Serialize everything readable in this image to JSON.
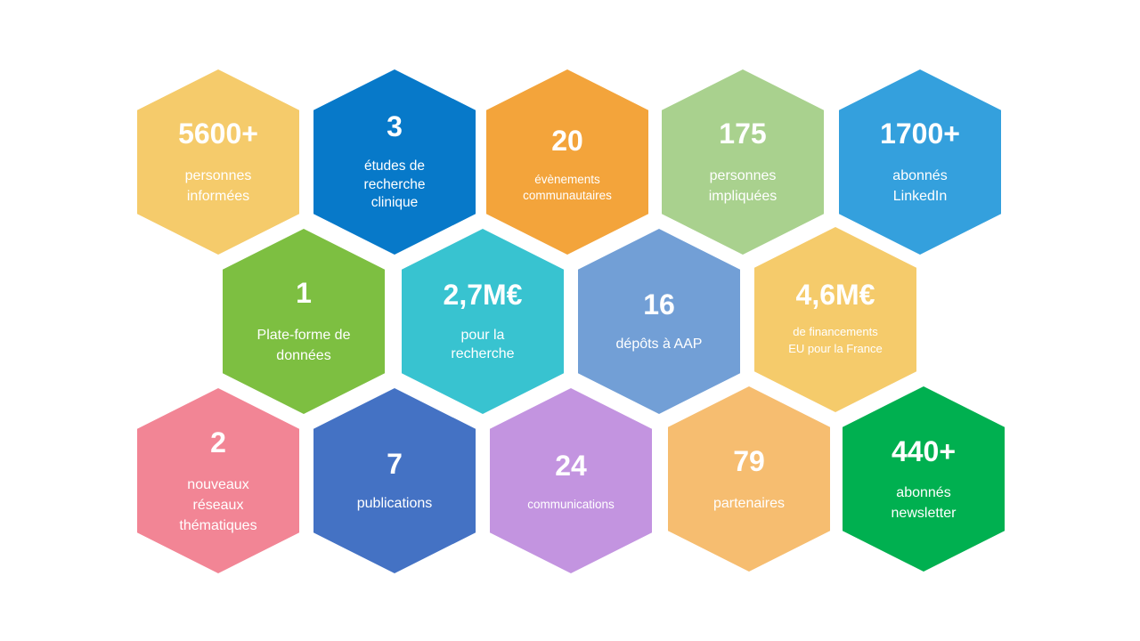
{
  "tiles": [
    {
      "number": "5600+",
      "label_1": "personnes",
      "label_2": "informées",
      "color": "#f5cb6b"
    },
    {
      "number": "3",
      "label_1": "études de",
      "label_2": "recherche",
      "label_3": "clinique",
      "color": "#0779c9"
    },
    {
      "number": "20",
      "label_1": "évènements",
      "label_2": "communautaires",
      "color": "#f3a43b"
    },
    {
      "number": "175",
      "label_1": "personnes",
      "label_2": "impliquées",
      "color": "#a9d18e"
    },
    {
      "number": "1700+",
      "label_1": "abonnés",
      "label_2": "LinkedIn",
      "color": "#34a0dd"
    },
    {
      "number": "1",
      "label_1": "Plate-forme de",
      "label_2": "données",
      "color": "#7dbf41"
    },
    {
      "number": "2,7M€",
      "label_1": "pour la",
      "label_2": "recherche",
      "color": "#38c3d0"
    },
    {
      "number": "16",
      "label_1": "dépôts à AAP",
      "color": "#729fd6"
    },
    {
      "number": "4,6M€",
      "label_1": "de financements",
      "label_2": "EU pour la France",
      "color": "#f5cb6b"
    },
    {
      "number": "2",
      "label_1": "nouveaux",
      "label_2": "réseaux",
      "label_3": "thématiques",
      "color": "#f28595"
    },
    {
      "number": "7",
      "label_1": "publications",
      "color": "#4472c4"
    },
    {
      "number": "24",
      "label_1": "communications",
      "color": "#c394e0"
    },
    {
      "number": "79",
      "label_1": "partenaires",
      "color": "#f6bd70"
    },
    {
      "number": "440+",
      "label_1": "abonnés",
      "label_2": "newsletter",
      "color": "#00b050"
    }
  ]
}
